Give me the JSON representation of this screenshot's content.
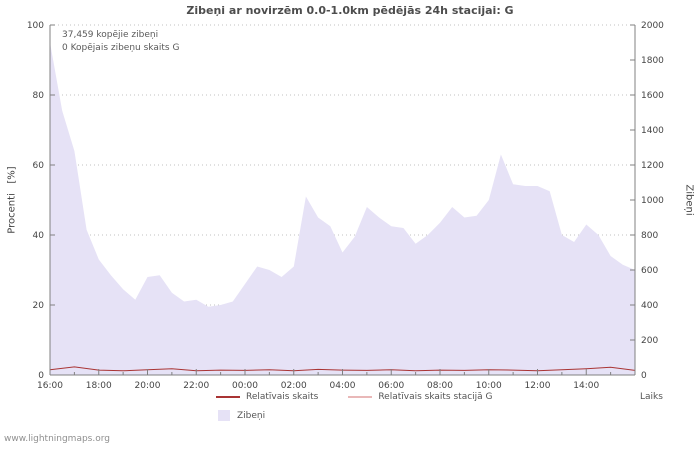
{
  "watermark": "www.lightningmaps.org",
  "chart_data": {
    "type": "area",
    "title": "Zibeņi ar novirzēm 0.0-1.0km pēdējās 24h stacijai: G",
    "xlabel": "Laiks",
    "ylabel_left": "Procenti   [%]",
    "ylabel_right": "Zibeņi",
    "annotations": [
      "37,459 kopējie zibeņi",
      "0 Kopējais zibeņu skaits G"
    ],
    "x_ticks": [
      "16:00",
      "18:00",
      "20:00",
      "22:00",
      "00:00",
      "02:00",
      "04:00",
      "06:00",
      "08:00",
      "10:00",
      "12:00",
      "14:00"
    ],
    "x_span_hours": 24,
    "x_tick_step_hours": 2,
    "ylim_left": [
      0,
      100
    ],
    "ylim_right": [
      0,
      2000
    ],
    "y_ticks_left": [
      0,
      20,
      40,
      60,
      80,
      100
    ],
    "y_ticks_right": [
      0,
      200,
      400,
      600,
      800,
      1000,
      1200,
      1400,
      1600,
      1800,
      2000
    ],
    "grid": "dotted-horizontal",
    "legend_position": "bottom-center",
    "colors": {
      "axis": "#808080",
      "grid": "#c0c0c0",
      "text": "#444444"
    },
    "series": [
      {
        "name": "Zibeņi",
        "type": "area",
        "axis": "right",
        "color": "#e6e2f6",
        "values": [
          1900,
          1510,
          1280,
          830,
          660,
          570,
          490,
          430,
          560,
          570,
          470,
          420,
          430,
          390,
          400,
          420,
          520,
          620,
          600,
          560,
          620,
          1020,
          900,
          850,
          700,
          790,
          960,
          900,
          850,
          840,
          750,
          800,
          870,
          960,
          900,
          910,
          1000,
          1260,
          1090,
          1080,
          1080,
          1050,
          800,
          760,
          860,
          800,
          680,
          630,
          600
        ]
      },
      {
        "name": "Relatīvais skaits",
        "type": "line",
        "axis": "left",
        "color": "#a93434",
        "values": [
          1.5,
          2.3,
          1.4,
          1.2,
          1.5,
          1.8,
          1.2,
          1.4,
          1.3,
          1.5,
          1.2,
          1.6,
          1.4,
          1.3,
          1.5,
          1.2,
          1.4,
          1.3,
          1.5,
          1.4,
          1.2,
          1.5,
          1.8,
          2.2,
          1.3
        ]
      },
      {
        "name": "Relatīvais skaits stacijā G",
        "type": "line",
        "axis": "left",
        "color": "#e9b8b8",
        "values": [
          0,
          0,
          0,
          0,
          0,
          0,
          0,
          0,
          0,
          0,
          0,
          0,
          0,
          0,
          0,
          0,
          0,
          0,
          0,
          0,
          0,
          0,
          0,
          0,
          0
        ]
      }
    ]
  }
}
